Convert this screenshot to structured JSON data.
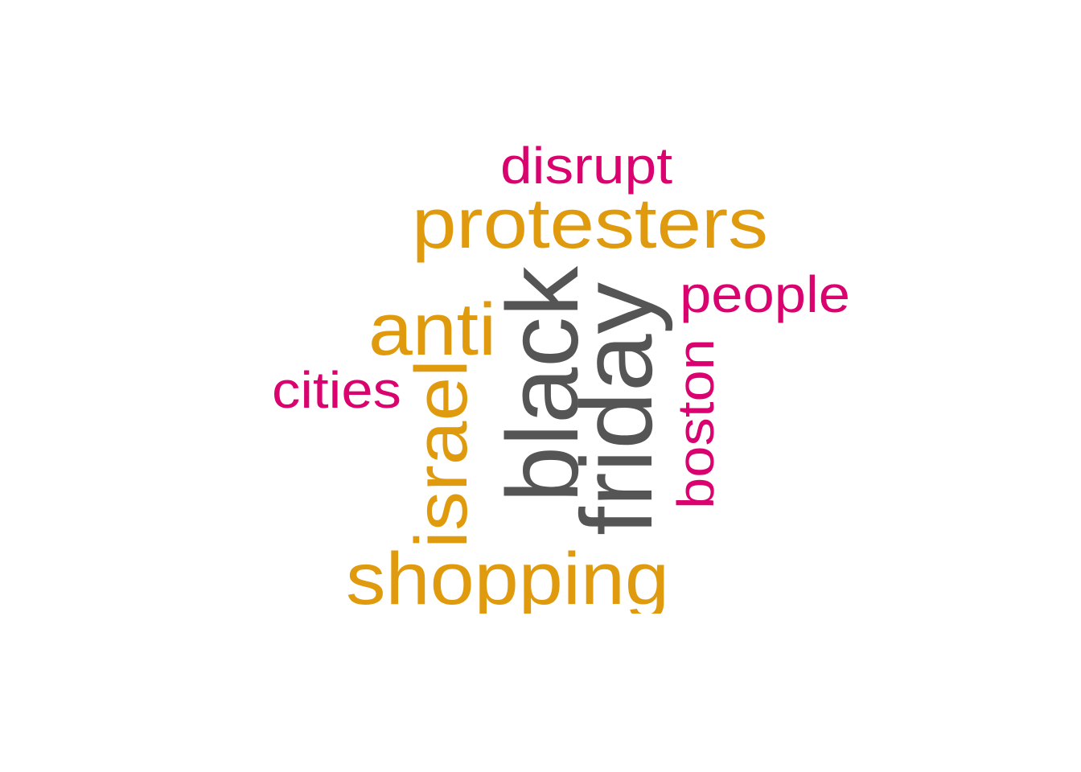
{
  "word_cloud": {
    "colors": {
      "tier1": "#555555",
      "tier2": "#e09a0e",
      "tier3": "#d9026f"
    },
    "words": [
      {
        "id": "black",
        "text": "black",
        "tier": "tier1",
        "orientation": "vertical"
      },
      {
        "id": "friday",
        "text": "friday",
        "tier": "tier1",
        "orientation": "vertical"
      },
      {
        "id": "protesters",
        "text": "protesters",
        "tier": "tier2",
        "orientation": "horizontal"
      },
      {
        "id": "shopping",
        "text": "shopping",
        "tier": "tier2",
        "orientation": "horizontal"
      },
      {
        "id": "anti",
        "text": "anti",
        "tier": "tier2",
        "orientation": "horizontal"
      },
      {
        "id": "israel",
        "text": "israel",
        "tier": "tier2",
        "orientation": "vertical"
      },
      {
        "id": "disrupt",
        "text": "disrupt",
        "tier": "tier3",
        "orientation": "horizontal"
      },
      {
        "id": "people",
        "text": "people",
        "tier": "tier3",
        "orientation": "horizontal"
      },
      {
        "id": "cities",
        "text": "cities",
        "tier": "tier3",
        "orientation": "horizontal"
      },
      {
        "id": "boston",
        "text": "boston",
        "tier": "tier3",
        "orientation": "vertical"
      }
    ]
  }
}
